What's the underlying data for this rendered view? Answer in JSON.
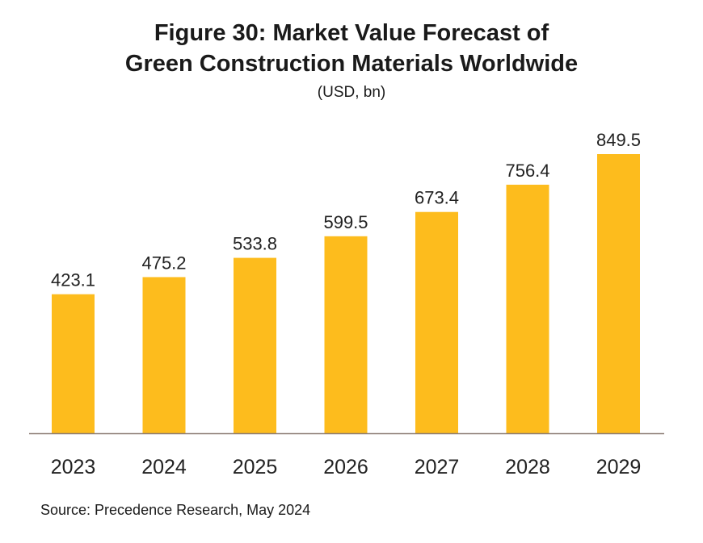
{
  "title_line1": "Figure 30: Market Value Forecast of",
  "title_line2": "Green Construction Materials Worldwide",
  "subtitle": "(USD, bn)",
  "source": "Source: Precedence Research, May 2024",
  "chart_data": {
    "type": "bar",
    "title": "Figure 30: Market Value Forecast of Green Construction Materials Worldwide",
    "subtitle": "(USD, bn)",
    "categories": [
      "2023",
      "2024",
      "2025",
      "2026",
      "2027",
      "2028",
      "2029"
    ],
    "values": [
      423.1,
      475.2,
      533.8,
      599.5,
      673.4,
      756.4,
      849.5
    ],
    "value_labels": [
      "423.1",
      "475.2",
      "533.8",
      "599.5",
      "673.4",
      "756.4",
      "849.5"
    ],
    "ylim": [
      0,
      849.5
    ],
    "bar_color": "#FDBC1D",
    "axis_color": "#8a7a72",
    "grid": false,
    "legend": "none"
  }
}
